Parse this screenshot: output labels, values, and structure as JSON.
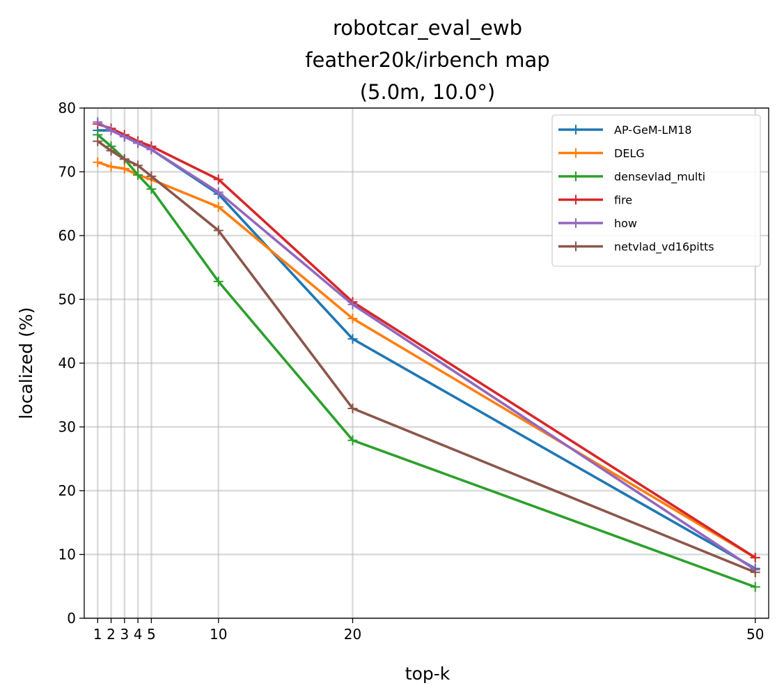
{
  "chart_data": {
    "type": "line",
    "title_lines": [
      "robotcar_eval_ewb",
      "feather20k/irbench map",
      "(5.0m, 10.0°)"
    ],
    "xlabel": "top-k",
    "ylabel": "localized (%)",
    "x": [
      1,
      2,
      3,
      4,
      5,
      10,
      20,
      50
    ],
    "xticks": [
      1,
      2,
      3,
      4,
      5,
      10,
      20,
      50
    ],
    "xlim": [
      0,
      51
    ],
    "ylim": [
      0,
      80
    ],
    "yticks": [
      0,
      10,
      20,
      30,
      40,
      50,
      60,
      70,
      80
    ],
    "grid": true,
    "legend_position": "top-right",
    "series": [
      {
        "name": "AP-GeM-LM18",
        "color": "#1f77b4",
        "values": [
          76.5,
          76.5,
          75.5,
          74.5,
          73.5,
          66.5,
          43.8,
          7.8
        ]
      },
      {
        "name": "DELG",
        "color": "#ff7f0e",
        "values": [
          71.5,
          70.8,
          70.5,
          69.5,
          68.8,
          64.5,
          47.0,
          9.5
        ]
      },
      {
        "name": "densevlad_multi",
        "color": "#2ca02c",
        "values": [
          75.8,
          74.0,
          72.0,
          69.5,
          67.3,
          52.8,
          27.9,
          4.9
        ]
      },
      {
        "name": "fire",
        "color": "#d62728",
        "values": [
          77.5,
          76.8,
          75.8,
          74.8,
          74.0,
          68.8,
          49.6,
          9.5
        ]
      },
      {
        "name": "how",
        "color": "#9467bd",
        "values": [
          77.8,
          76.5,
          75.5,
          74.5,
          73.5,
          66.8,
          49.2,
          7.6
        ]
      },
      {
        "name": "netvlad_vd16pitts",
        "color": "#8c564b",
        "values": [
          74.8,
          73.3,
          72.0,
          71.0,
          69.3,
          60.8,
          32.9,
          7.2
        ]
      }
    ]
  }
}
